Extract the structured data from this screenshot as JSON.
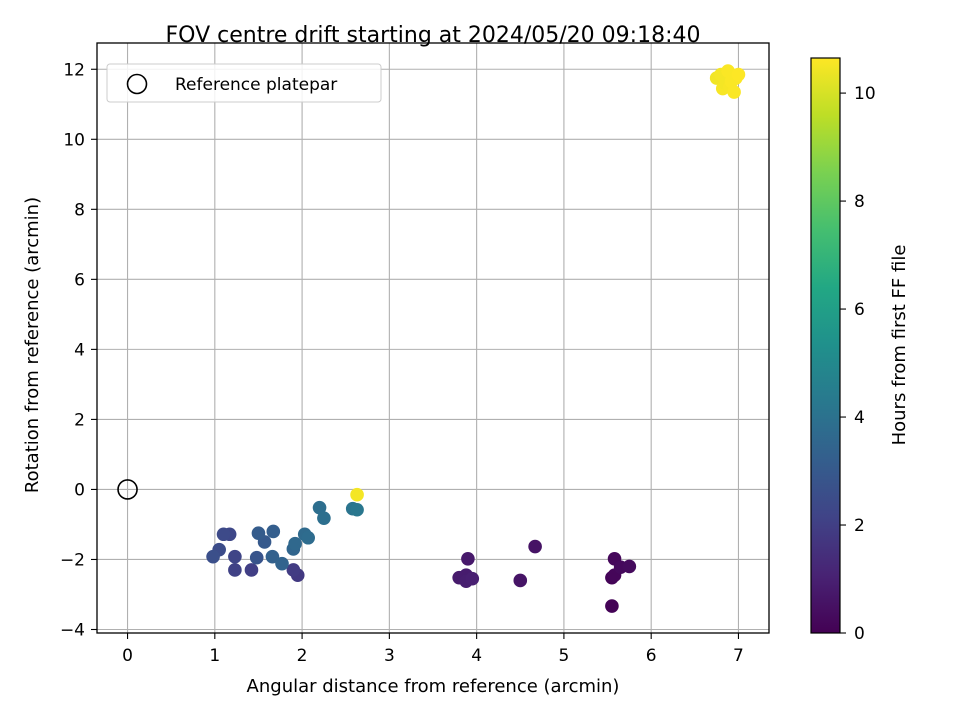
{
  "chart_data": {
    "type": "scatter",
    "title": "FOV centre drift starting at 2024/05/20 09:18:40",
    "xlabel": "Angular distance from reference (arcmin)",
    "ylabel": "Rotation from reference (arcmin)",
    "xlim": [
      -0.35,
      7.35
    ],
    "ylim": [
      -4.1,
      12.75
    ],
    "xticks": [
      0,
      1,
      2,
      3,
      4,
      5,
      6,
      7
    ],
    "yticks": [
      -4,
      -2,
      0,
      2,
      4,
      6,
      8,
      10,
      12
    ],
    "xtick_labels": [
      "0",
      "1",
      "2",
      "3",
      "4",
      "5",
      "6",
      "7"
    ],
    "ytick_labels": [
      "−4",
      "−2",
      "0",
      "2",
      "4",
      "6",
      "8",
      "10",
      "12"
    ],
    "grid": true,
    "legend": {
      "placement": "upper-left",
      "entries": [
        {
          "label": "Reference platepar",
          "marker": "hollow-circle"
        }
      ]
    },
    "reference_point": {
      "x": 0,
      "y": 0
    },
    "colorbar": {
      "label": "Hours from first FF file",
      "colormap": "viridis",
      "range": [
        0,
        10.65
      ],
      "ticks": [
        0,
        2,
        4,
        6,
        8,
        10
      ],
      "tick_labels": [
        "0",
        "2",
        "4",
        "6",
        "8",
        "10"
      ]
    },
    "points": [
      {
        "x": 5.55,
        "y": -3.33,
        "c": 0.05
      },
      {
        "x": 5.55,
        "y": -2.52,
        "c": 0.1
      },
      {
        "x": 5.58,
        "y": -2.45,
        "c": 0.15
      },
      {
        "x": 5.58,
        "y": -1.98,
        "c": 0.2
      },
      {
        "x": 5.65,
        "y": -2.22,
        "c": 0.25
      },
      {
        "x": 5.75,
        "y": -2.2,
        "c": 0.3
      },
      {
        "x": 4.67,
        "y": -1.63,
        "c": 0.55
      },
      {
        "x": 4.5,
        "y": -2.6,
        "c": 0.6
      },
      {
        "x": 3.9,
        "y": -1.98,
        "c": 0.75
      },
      {
        "x": 3.8,
        "y": -2.52,
        "c": 0.8
      },
      {
        "x": 3.88,
        "y": -2.45,
        "c": 0.85
      },
      {
        "x": 3.88,
        "y": -2.62,
        "c": 0.9
      },
      {
        "x": 3.95,
        "y": -2.55,
        "c": 0.95
      },
      {
        "x": 1.95,
        "y": -2.45,
        "c": 1.8
      },
      {
        "x": 1.9,
        "y": -2.3,
        "c": 1.9
      },
      {
        "x": 1.42,
        "y": -2.3,
        "c": 2.0
      },
      {
        "x": 1.23,
        "y": -2.3,
        "c": 2.1
      },
      {
        "x": 1.23,
        "y": -1.92,
        "c": 2.2
      },
      {
        "x": 1.17,
        "y": -1.28,
        "c": 2.3
      },
      {
        "x": 1.1,
        "y": -1.28,
        "c": 2.4
      },
      {
        "x": 1.05,
        "y": -1.72,
        "c": 2.5
      },
      {
        "x": 0.98,
        "y": -1.92,
        "c": 2.6
      },
      {
        "x": 1.48,
        "y": -1.95,
        "c": 2.8
      },
      {
        "x": 1.57,
        "y": -1.5,
        "c": 3.0
      },
      {
        "x": 1.5,
        "y": -1.25,
        "c": 3.1
      },
      {
        "x": 1.67,
        "y": -1.2,
        "c": 3.2
      },
      {
        "x": 1.66,
        "y": -1.92,
        "c": 3.3
      },
      {
        "x": 1.77,
        "y": -2.12,
        "c": 3.4
      },
      {
        "x": 1.9,
        "y": -1.7,
        "c": 3.5
      },
      {
        "x": 1.92,
        "y": -1.55,
        "c": 3.6
      },
      {
        "x": 2.03,
        "y": -1.28,
        "c": 3.7
      },
      {
        "x": 2.07,
        "y": -1.38,
        "c": 3.75
      },
      {
        "x": 2.2,
        "y": -0.52,
        "c": 3.85
      },
      {
        "x": 2.25,
        "y": -0.82,
        "c": 3.9
      },
      {
        "x": 2.58,
        "y": -0.55,
        "c": 4.1
      },
      {
        "x": 2.63,
        "y": -0.58,
        "c": 4.2
      },
      {
        "x": 2.63,
        "y": -0.15,
        "c": 10.5
      },
      {
        "x": 6.75,
        "y": 11.75,
        "c": 10.45
      },
      {
        "x": 6.8,
        "y": 11.85,
        "c": 10.5
      },
      {
        "x": 6.82,
        "y": 11.45,
        "c": 10.55
      },
      {
        "x": 6.85,
        "y": 11.6,
        "c": 10.5
      },
      {
        "x": 6.88,
        "y": 11.95,
        "c": 10.6
      },
      {
        "x": 6.9,
        "y": 11.5,
        "c": 10.55
      },
      {
        "x": 6.92,
        "y": 11.65,
        "c": 10.6
      },
      {
        "x": 6.95,
        "y": 11.35,
        "c": 10.6
      },
      {
        "x": 6.97,
        "y": 11.75,
        "c": 10.6
      },
      {
        "x": 7.0,
        "y": 11.85,
        "c": 10.65
      }
    ]
  }
}
